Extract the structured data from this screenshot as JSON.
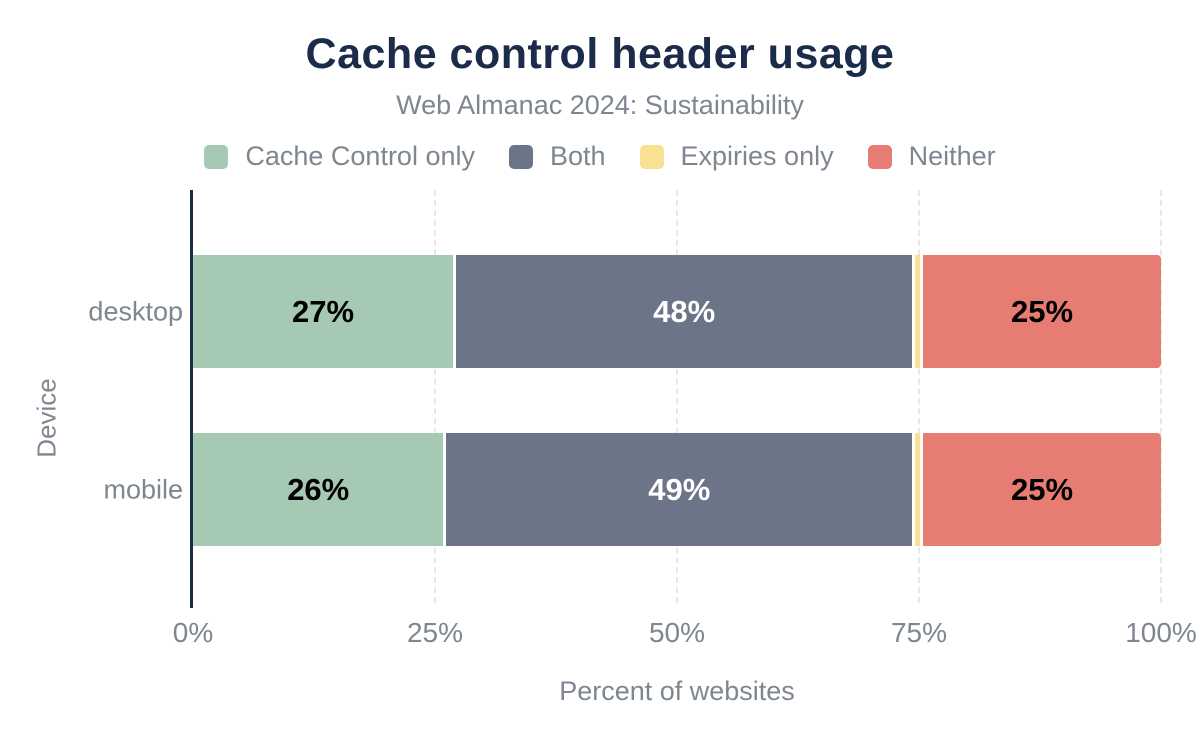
{
  "header": {
    "title": "Cache control header usage",
    "subtitle": "Web Almanac 2024: Sustainability"
  },
  "chart_data": {
    "type": "bar",
    "orientation": "horizontal",
    "stacked": true,
    "title": "Cache control header usage",
    "subtitle": "Web Almanac 2024: Sustainability",
    "categories": [
      "desktop",
      "mobile"
    ],
    "series": [
      {
        "name": "Cache Control only",
        "color": "#a6c9b4",
        "values": [
          27,
          26
        ],
        "labels": [
          "27%",
          "26%"
        ],
        "label_color": "#000000"
      },
      {
        "name": "Both",
        "color": "#6b7587",
        "values": [
          48,
          49
        ],
        "labels": [
          "48%",
          "49%"
        ],
        "label_color": "#ffffff"
      },
      {
        "name": "Expiries only",
        "color": "#f9e193",
        "values": [
          0.5,
          0.5
        ],
        "labels": [
          "",
          ""
        ],
        "label_color": "#000000"
      },
      {
        "name": "Neither",
        "color": "#e67c72",
        "values": [
          25,
          25
        ],
        "labels": [
          "25%",
          "25%"
        ],
        "label_color": "#000000"
      }
    ],
    "xlabel": "Percent of websites",
    "ylabel": "Device",
    "xlim": [
      0,
      100
    ],
    "x_ticks": [
      {
        "value": 0,
        "label": "0%"
      },
      {
        "value": 25,
        "label": "25%"
      },
      {
        "value": 50,
        "label": "50%"
      },
      {
        "value": 75,
        "label": "75%"
      },
      {
        "value": 100,
        "label": "100%"
      }
    ],
    "grid": "vertical-dashed",
    "legend_position": "top"
  },
  "colors": {
    "background": "#ffffff",
    "title": "#1b2b4a",
    "muted_text": "#7e8690",
    "axis_line": "#1b2b4a",
    "gridline": "#e8e8e8",
    "segment_gap": "#ffffff"
  }
}
